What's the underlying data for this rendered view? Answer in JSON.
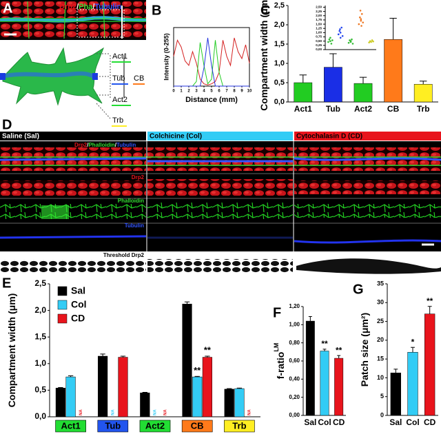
{
  "panel_letters": [
    "A",
    "B",
    "C",
    "D",
    "E",
    "F",
    "G"
  ],
  "panel_a": {
    "stain_labels": [
      "Drp2",
      "Pha",
      "Tubulin"
    ],
    "separator": "/",
    "diagram_labels": {
      "act1": "Act1",
      "tub": "Tub",
      "act2": "Act2",
      "cb": "CB",
      "trb": "Trb"
    }
  },
  "panel_d": {
    "conditions": [
      "Saline (Sal)",
      "Colchicine (Col)",
      "Cytochalasin D (CD)"
    ],
    "stains": [
      "Drp2",
      "Phalloidin",
      "Tubulin"
    ],
    "separator": "/",
    "threshold_label": "Threshold Drp2"
  },
  "chart_data": [
    {
      "type": "line",
      "y_label": "Intensity (0-255)",
      "x_label": "Distance (mm)",
      "x": [
        0,
        0.5,
        1,
        1.5,
        2,
        2.5,
        3,
        3.5,
        4,
        4.5,
        5,
        5.5,
        6,
        6.5,
        7,
        7.5,
        8,
        8.5,
        9,
        9.5,
        10
      ],
      "series": [
        {
          "color": "#d42020",
          "values": [
            130,
            200,
            170,
            110,
            90,
            150,
            100,
            30,
            10,
            5,
            10,
            20,
            60,
            200,
            130,
            90,
            210,
            150,
            120,
            180,
            100
          ]
        },
        {
          "color": "#22cc22",
          "values": [
            0,
            0,
            0,
            0,
            0,
            0,
            20,
            190,
            90,
            10,
            30,
            200,
            60,
            0,
            0,
            0,
            0,
            0,
            0,
            0,
            0
          ]
        },
        {
          "color": "#2233dd",
          "values": [
            0,
            0,
            0,
            0,
            0,
            0,
            0,
            0,
            80,
            210,
            90,
            0,
            0,
            0,
            0,
            0,
            0,
            0,
            0,
            0,
            0
          ]
        }
      ],
      "xlim": [
        0,
        10
      ],
      "xticks": [
        0,
        1,
        2,
        3,
        4,
        5,
        6,
        7,
        8,
        9,
        10
      ],
      "ylim": [
        0,
        255
      ]
    },
    {
      "type": "bar",
      "y_label": "Compartment width (μm)",
      "categories": [
        "Act1",
        "Tub",
        "Act2",
        "CB",
        "Trb"
      ],
      "values": [
        0.5,
        0.9,
        0.48,
        1.62,
        0.46
      ],
      "errors": [
        0.2,
        0.35,
        0.16,
        0.55,
        0.08
      ],
      "colors": [
        "#22cc22",
        "#1a2ee6",
        "#22cc22",
        "#ff7a1a",
        "#ffee22"
      ],
      "ylim": [
        0,
        2.5
      ],
      "yticks": [
        {
          "value": 0,
          "label": "0,0"
        },
        {
          "value": 0.5,
          "label": "0,5"
        },
        {
          "value": 1,
          "label": "1,0"
        },
        {
          "value": 1.5,
          "label": "1,5"
        },
        {
          "value": 2,
          "label": "2,0"
        },
        {
          "value": 2.5,
          "label": "2,5"
        }
      ]
    },
    {
      "type": "scatter",
      "series": [
        {
          "color": "#33bb33",
          "x": [
            0.8,
            0.9,
            1.0,
            1.1,
            1.2,
            1.0
          ],
          "values": [
            0.45,
            0.6,
            0.5,
            0.35,
            0.55,
            0.7
          ]
        },
        {
          "color": "#2244ee",
          "x": [
            1.8,
            1.9,
            2.0,
            2.1,
            2.2,
            2.0,
            1.95
          ],
          "values": [
            0.9,
            1.1,
            0.7,
            1.3,
            0.8,
            1.0,
            1.2
          ]
        },
        {
          "color": "#33bb33",
          "x": [
            2.8,
            2.9,
            3.0,
            3.1,
            3.2,
            3.0
          ],
          "values": [
            0.4,
            0.55,
            0.5,
            0.6,
            0.35,
            0.45
          ]
        },
        {
          "color": "#ee7722",
          "x": [
            3.8,
            3.9,
            4.0,
            4.1,
            4.2,
            4.0,
            3.95,
            4.05
          ],
          "values": [
            1.5,
            1.9,
            1.7,
            2.1,
            1.6,
            1.8,
            2.3,
            1.4
          ]
        },
        {
          "color": "#cccc22",
          "x": [
            4.8,
            4.9,
            5.0,
            5.1,
            5.2
          ],
          "values": [
            0.42,
            0.5,
            0.45,
            0.55,
            0.48
          ]
        }
      ],
      "xlim": [
        0.5,
        5.5
      ],
      "ylim": [
        0,
        2.6
      ],
      "yticks": [
        {
          "value": 0,
          "label": "0,00"
        },
        {
          "value": 0.25,
          "label": "0,25"
        },
        {
          "value": 0.5,
          "label": "0,50"
        },
        {
          "value": 0.75,
          "label": "0,75"
        },
        {
          "value": 1,
          "label": "1,00"
        },
        {
          "value": 1.25,
          "label": "1,25"
        },
        {
          "value": 1.5,
          "label": "1,50"
        },
        {
          "value": 1.75,
          "label": "1,75"
        },
        {
          "value": 2,
          "label": "2,00"
        },
        {
          "value": 2.25,
          "label": "2,25"
        },
        {
          "value": 2.5,
          "label": "2,50"
        }
      ]
    },
    {
      "type": "grouped_bar",
      "y_label": "Compartment width (μm)",
      "categories": [
        "Act1",
        "Tub",
        "Act2",
        "CB",
        "Trb"
      ],
      "category_colors": [
        "#22dd33",
        "#2255ee",
        "#22dd33",
        "#ff7a1a",
        "#ffee22"
      ],
      "series": [
        {
          "name": "Sal",
          "color": "#000000",
          "values": [
            0.54,
            1.14,
            0.45,
            2.12,
            0.52
          ],
          "errors": [
            0.01,
            0.04,
            0.01,
            0.04,
            0.01
          ]
        },
        {
          "name": "Col",
          "color": "#33ccf5",
          "values": [
            0.75,
            null,
            null,
            0.75,
            0.53
          ],
          "errors": [
            0.02,
            null,
            null,
            0.01,
            0.01
          ],
          "value_labels": [
            null,
            "NA",
            "NA",
            null,
            null
          ],
          "sig_labels": [
            null,
            null,
            null,
            "**",
            null
          ]
        },
        {
          "name": "CD",
          "color": "#e8141c",
          "values": [
            null,
            1.12,
            null,
            1.12,
            null
          ],
          "errors": [
            null,
            0.02,
            null,
            0.02,
            null
          ],
          "value_labels": [
            "NA",
            null,
            "NA",
            null,
            "NA"
          ],
          "sig_labels": [
            null,
            null,
            null,
            "**",
            null
          ]
        }
      ],
      "legend": "upper-left",
      "ylim": [
        0,
        2.5
      ],
      "yticks": [
        {
          "value": 0,
          "label": "0,0"
        },
        {
          "value": 0.5,
          "label": "0,5"
        },
        {
          "value": 1,
          "label": "1,0"
        },
        {
          "value": 1.5,
          "label": "1,5"
        },
        {
          "value": 2,
          "label": "2,0"
        },
        {
          "value": 2.5,
          "label": "2,5"
        }
      ]
    },
    {
      "type": "bar",
      "y_label": "f-ratio",
      "y_label_sup": "LM",
      "categories": [
        "Sal",
        "Col",
        "CD"
      ],
      "values": [
        1.04,
        0.71,
        0.63
      ],
      "errors": [
        0.05,
        0.02,
        0.03
      ],
      "colors": [
        "#000000",
        "#33ccf5",
        "#e8141c"
      ],
      "sig_labels": [
        null,
        "**",
        "**"
      ],
      "ylim": [
        0,
        1.2
      ],
      "yticks": [
        {
          "value": 0,
          "label": "0,00"
        },
        {
          "value": 0.2,
          "label": "0,20"
        },
        {
          "value": 0.4,
          "label": "0,40"
        },
        {
          "value": 0.6,
          "label": "0,60"
        },
        {
          "value": 0.8,
          "label": "0,80"
        },
        {
          "value": 1,
          "label": "1,00"
        },
        {
          "value": 1.2,
          "label": "1,20"
        }
      ]
    },
    {
      "type": "bar",
      "y_label": "Patch size (μm²)",
      "categories": [
        "Sal",
        "Col",
        "CD"
      ],
      "values": [
        11.3,
        16.8,
        27
      ],
      "errors": [
        1,
        1.3,
        2
      ],
      "colors": [
        "#000000",
        "#33ccf5",
        "#e8141c"
      ],
      "sig_labels": [
        null,
        "*",
        "**"
      ],
      "ylim": [
        0,
        35
      ],
      "yticks": [
        0,
        5,
        10,
        15,
        20,
        25,
        30,
        35
      ]
    }
  ]
}
